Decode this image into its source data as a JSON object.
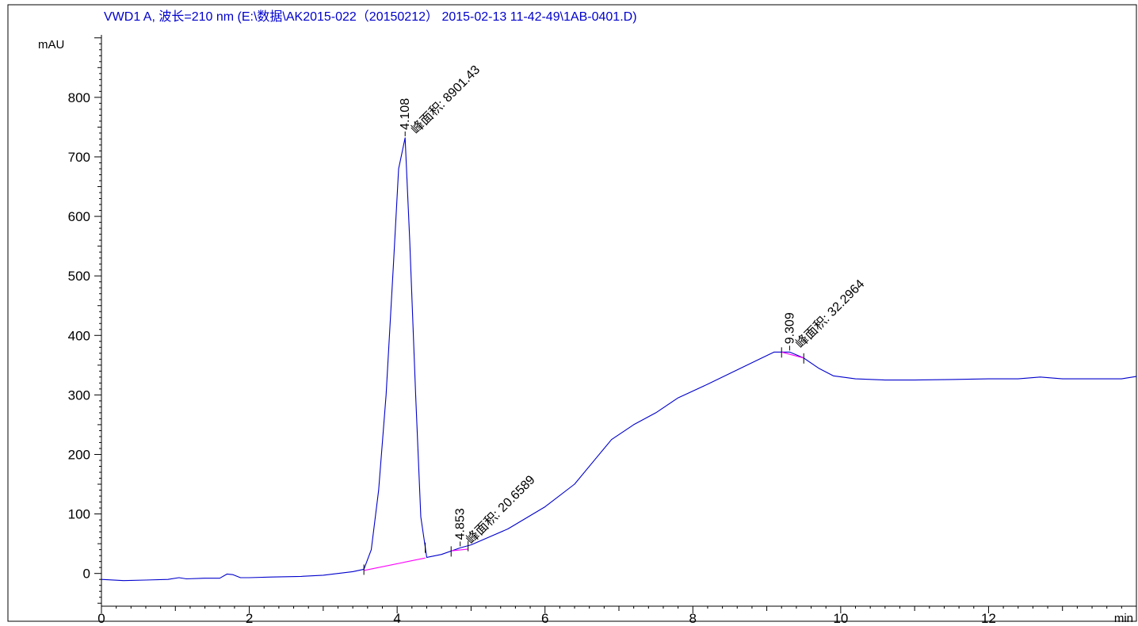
{
  "chart_data": {
    "type": "line",
    "title": "VWD1 A, 波长=210 nm (E:\\数据\\AK2015-022（20150212） 2015-02-13 11-42-49\\1AB-0401.D)",
    "xlabel": "min",
    "ylabel": "mAU",
    "xlim": [
      0,
      14
    ],
    "ylim": [
      -55,
      905
    ],
    "x_ticks": [
      0,
      2,
      4,
      6,
      8,
      10,
      12
    ],
    "y_ticks": [
      0,
      100,
      200,
      300,
      400,
      500,
      600,
      700,
      800
    ],
    "grid": false,
    "legend": "none",
    "colors": {
      "trace": "#0000cc",
      "baseline": "#ff00ff",
      "axis": "#000000",
      "title": "#0000cc"
    },
    "series": [
      {
        "x": [
          0,
          0.3,
          0.6,
          0.9,
          1.05,
          1.15,
          1.4,
          1.6,
          1.7,
          1.78,
          1.88,
          2.0,
          2.3,
          2.7,
          3.0,
          3.2,
          3.4,
          3.55,
          3.65,
          3.75,
          3.85,
          3.95,
          4.02,
          4.108,
          4.17,
          4.25,
          4.32,
          4.4,
          4.6,
          4.853,
          5.0,
          5.5,
          6.0,
          6.4,
          6.7,
          6.9,
          7.2,
          7.5,
          7.8,
          8.2,
          8.6,
          8.9,
          9.1,
          9.309,
          9.5,
          9.7,
          9.9,
          10.2,
          10.6,
          11.0,
          11.5,
          12.0,
          12.4,
          12.7,
          13.0,
          13.4,
          13.8,
          14.0
        ],
        "y": [
          -10,
          -12,
          -11,
          -10,
          -7,
          -9,
          -8,
          -8,
          -1,
          -2,
          -7,
          -7,
          -6,
          -5,
          -3,
          0,
          3,
          7,
          40,
          140,
          300,
          520,
          680,
          732,
          560,
          300,
          95,
          27,
          32,
          43,
          48,
          75,
          112,
          150,
          195,
          225,
          250,
          270,
          295,
          318,
          342,
          360,
          372,
          372,
          362,
          345,
          332,
          327,
          325,
          325,
          326,
          327,
          327,
          330,
          327,
          327,
          327,
          331
        ]
      }
    ],
    "baseline_segments": [
      {
        "x": [
          3.55,
          4.38
        ],
        "y": [
          5,
          26
        ]
      },
      {
        "x": [
          4.73,
          4.96
        ],
        "y": [
          38,
          41
        ]
      },
      {
        "x": [
          9.2,
          9.5
        ],
        "y": [
          372,
          362
        ]
      }
    ],
    "annotations": [
      {
        "retention_time": "4.108",
        "area_label": "峰面积: 8901.43",
        "x": 4.108,
        "y": 732
      },
      {
        "retention_time": "4.853",
        "area_label": "峰面积: 20.6589",
        "x": 4.853,
        "y": 43
      },
      {
        "retention_time": "9.309",
        "area_label": "峰面积: 32.2964",
        "x": 9.309,
        "y": 372
      }
    ],
    "peak_marks": [
      3.55,
      4.38,
      4.73,
      4.96,
      9.2,
      9.5
    ]
  }
}
